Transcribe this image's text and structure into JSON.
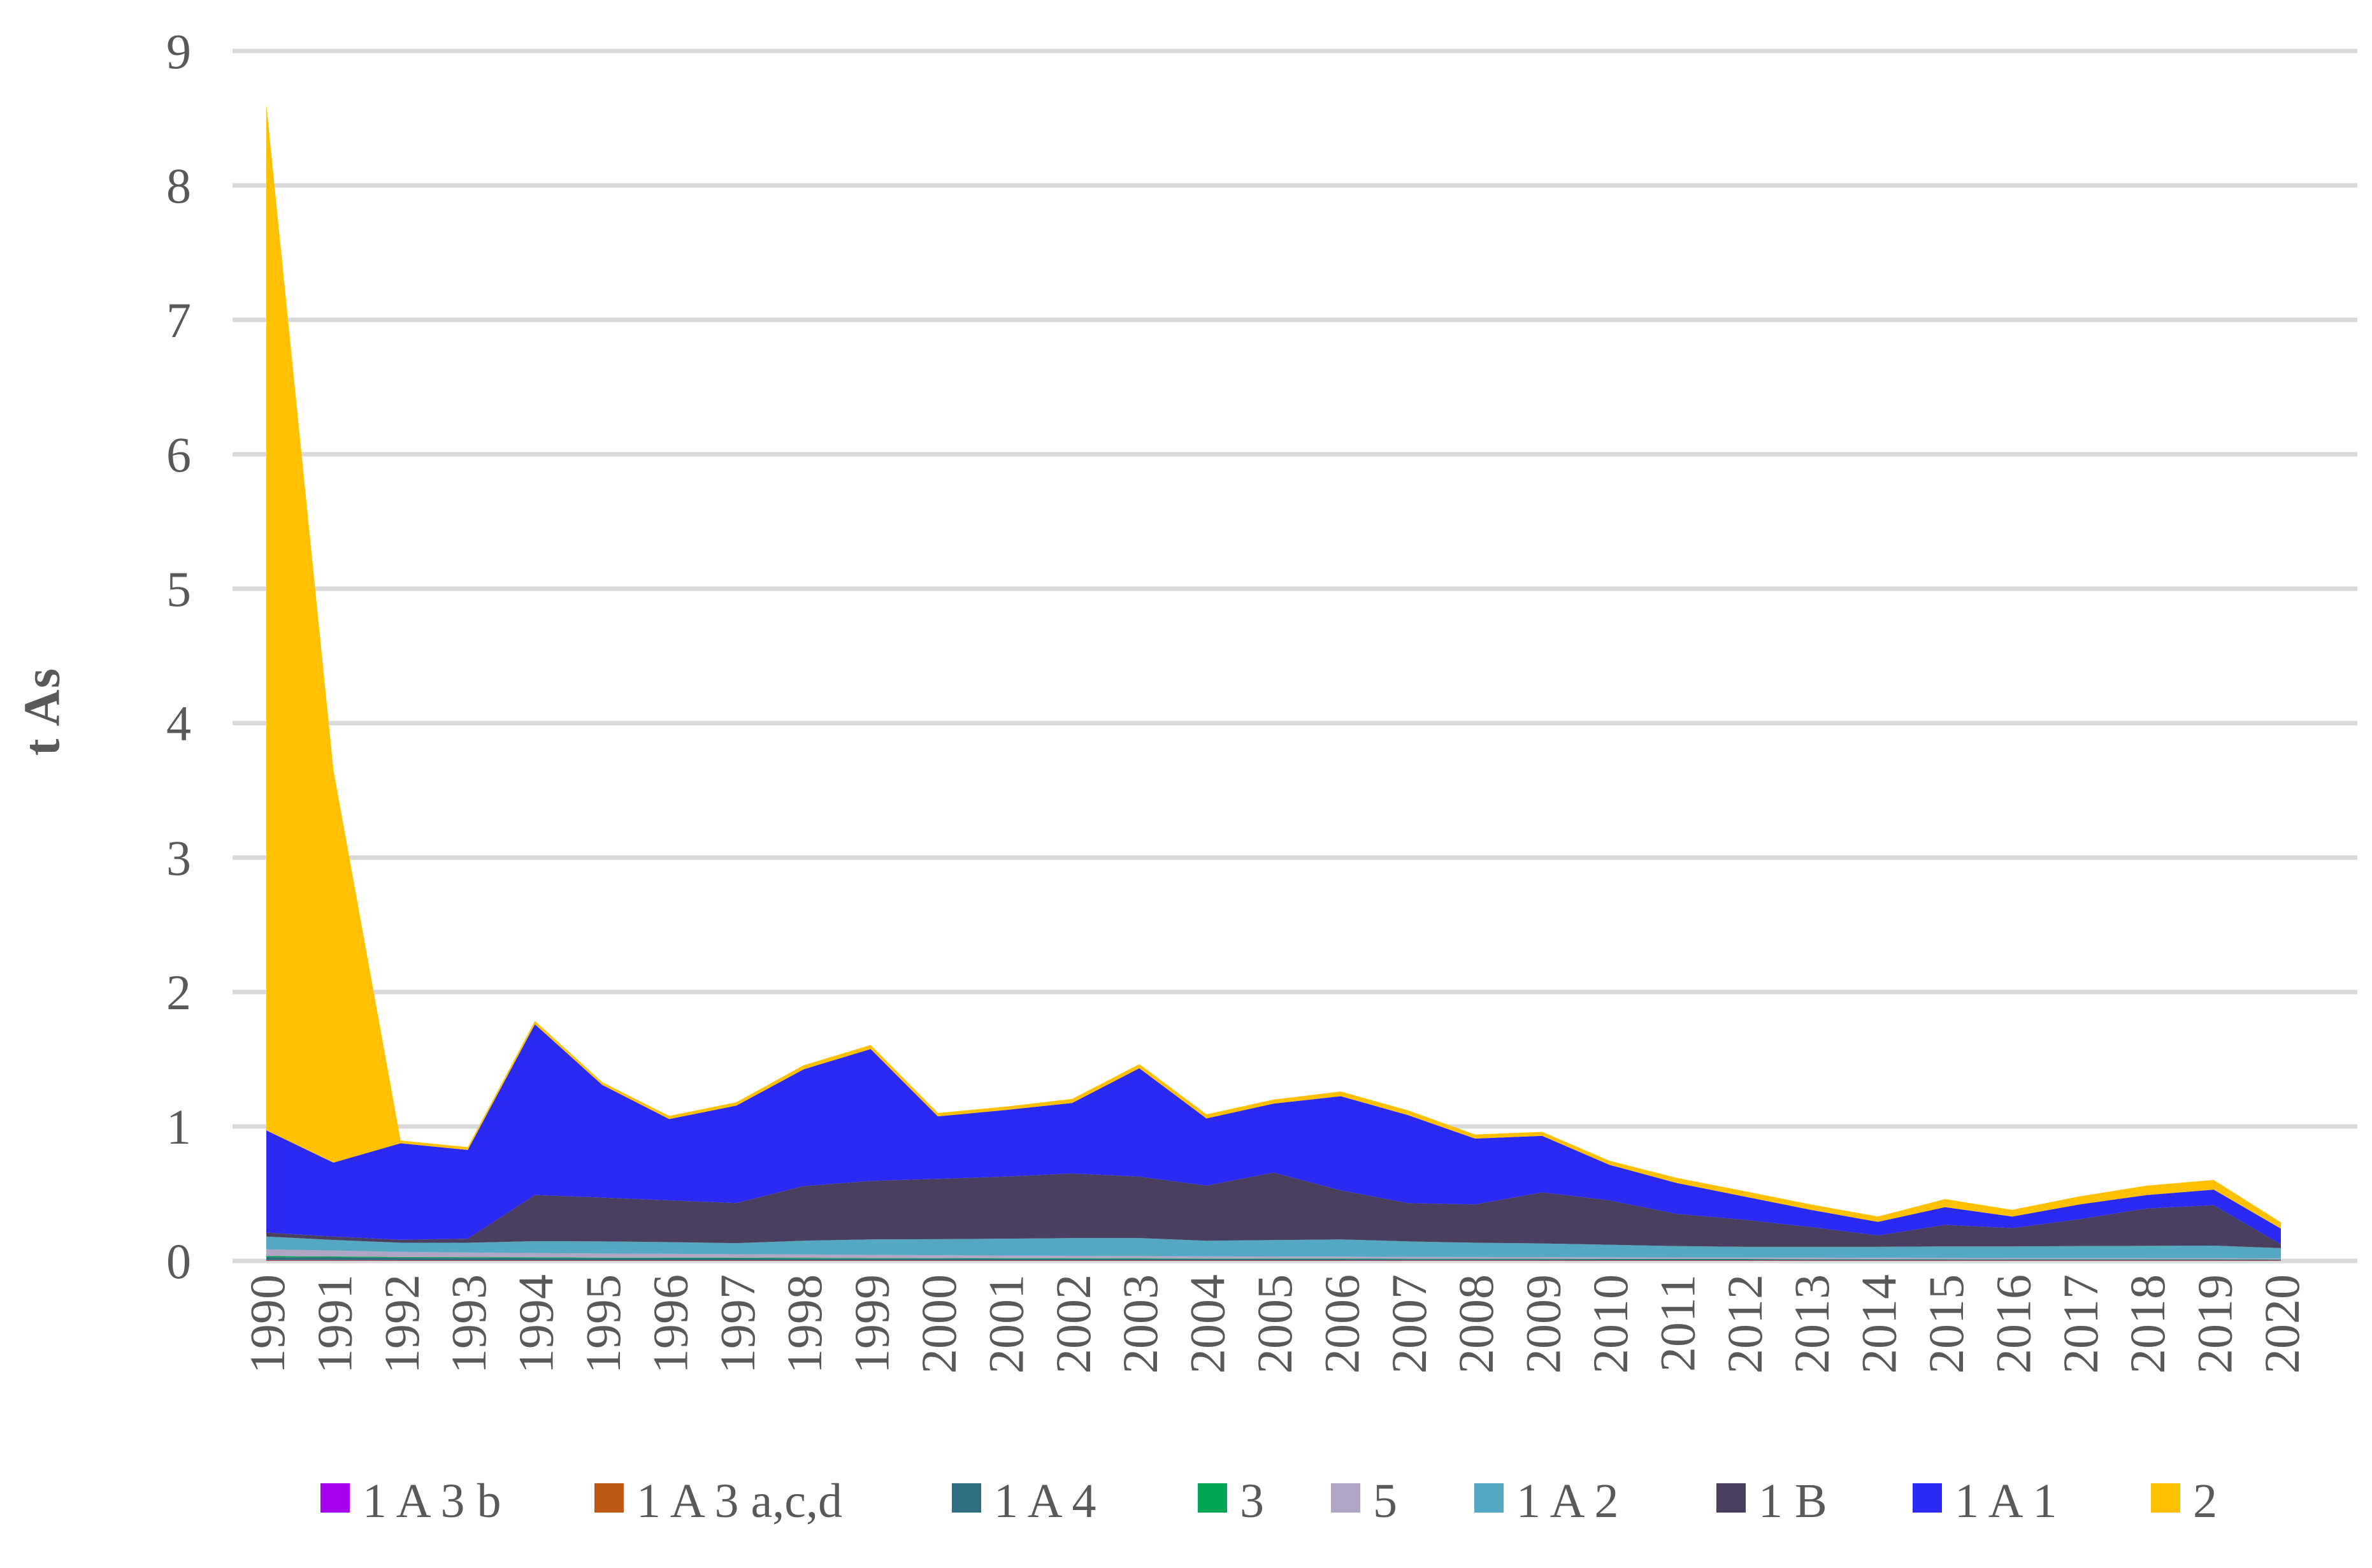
{
  "chart_data": {
    "type": "area",
    "stacked": true,
    "title": "",
    "xlabel": "",
    "ylabel": "t As",
    "ylim": [
      0,
      9
    ],
    "grid": "horizontal",
    "gridline_color": "#D9D9D9",
    "background_color": "#FFFFFF",
    "text_color": "#595959",
    "legend_position": "bottom",
    "y_ticks": [
      "0",
      "1",
      "2",
      "3",
      "4",
      "5",
      "6",
      "7",
      "8",
      "9"
    ],
    "x": [
      1990,
      1991,
      1992,
      1993,
      1994,
      1995,
      1996,
      1997,
      1998,
      1999,
      2000,
      2001,
      2002,
      2003,
      2004,
      2005,
      2006,
      2007,
      2008,
      2009,
      2010,
      2011,
      2012,
      2013,
      2014,
      2015,
      2016,
      2017,
      2018,
      2019,
      2020
    ],
    "x_tick_labels": [
      "1990",
      "1991",
      "1992",
      "1993",
      "1994",
      "1995",
      "1996",
      "1997",
      "1998",
      "1999",
      "2000",
      "2001",
      "2002",
      "2003",
      "2004",
      "2005",
      "2006",
      "2007",
      "2008",
      "2009",
      "2010",
      "2011",
      "2012",
      "2013",
      "2014",
      "2015",
      "2016",
      "2017",
      "2018",
      "2019",
      "2020"
    ],
    "series": [
      {
        "name": "1 A 3 b",
        "color": "#A800F0",
        "values": [
          0.002,
          0.002,
          0.002,
          0.002,
          0.002,
          0.002,
          0.002,
          0.002,
          0.002,
          0.002,
          0.002,
          0.002,
          0.002,
          0.002,
          0.002,
          0.002,
          0.002,
          0.002,
          0.002,
          0.002,
          0.002,
          0.002,
          0.002,
          0.002,
          0.002,
          0.002,
          0.002,
          0.002,
          0.002,
          0.002,
          0.002
        ]
      },
      {
        "name": "1 A 3 a,c,d",
        "color": "#BE5A15",
        "values": [
          0.004,
          0.004,
          0.003,
          0.003,
          0.003,
          0.003,
          0.003,
          0.003,
          0.003,
          0.003,
          0.003,
          0.003,
          0.003,
          0.003,
          0.003,
          0.003,
          0.003,
          0.003,
          0.003,
          0.003,
          0.003,
          0.003,
          0.003,
          0.003,
          0.003,
          0.003,
          0.003,
          0.003,
          0.003,
          0.003,
          0.003
        ]
      },
      {
        "name": "1 A 4",
        "color": "#2F6D80",
        "values": [
          0.022,
          0.02,
          0.018,
          0.017,
          0.016,
          0.015,
          0.014,
          0.014,
          0.013,
          0.012,
          0.012,
          0.011,
          0.011,
          0.01,
          0.01,
          0.009,
          0.009,
          0.008,
          0.008,
          0.008,
          0.007,
          0.007,
          0.007,
          0.006,
          0.006,
          0.006,
          0.005,
          0.005,
          0.005,
          0.005,
          0.004
        ]
      },
      {
        "name": "3",
        "color": "#00A651",
        "values": [
          0.008,
          0.007,
          0.006,
          0.006,
          0.006,
          0.005,
          0.005,
          0.005,
          0.005,
          0.004,
          0.004,
          0.004,
          0.004,
          0.004,
          0.003,
          0.003,
          0.003,
          0.003,
          0.003,
          0.003,
          0.003,
          0.003,
          0.002,
          0.002,
          0.002,
          0.002,
          0.002,
          0.002,
          0.002,
          0.002,
          0.002
        ]
      },
      {
        "name": "5",
        "color": "#B1A5C6",
        "values": [
          0.05,
          0.044,
          0.038,
          0.034,
          0.031,
          0.03,
          0.029,
          0.026,
          0.025,
          0.024,
          0.021,
          0.02,
          0.018,
          0.017,
          0.016,
          0.016,
          0.015,
          0.014,
          0.013,
          0.012,
          0.012,
          0.011,
          0.011,
          0.011,
          0.01,
          0.009,
          0.009,
          0.009,
          0.008,
          0.008,
          0.007
        ]
      },
      {
        "name": "1 A 2",
        "color": "#54A8C2",
        "values": [
          0.095,
          0.079,
          0.068,
          0.073,
          0.089,
          0.09,
          0.087,
          0.082,
          0.102,
          0.115,
          0.12,
          0.125,
          0.132,
          0.134,
          0.116,
          0.122,
          0.128,
          0.115,
          0.106,
          0.102,
          0.093,
          0.084,
          0.08,
          0.081,
          0.082,
          0.086,
          0.087,
          0.089,
          0.092,
          0.094,
          0.077
        ]
      },
      {
        "name": "1 B",
        "color": "#4A3F5F",
        "values": [
          0.03,
          0.025,
          0.022,
          0.03,
          0.343,
          0.326,
          0.31,
          0.298,
          0.406,
          0.435,
          0.448,
          0.462,
          0.48,
          0.457,
          0.41,
          0.502,
          0.365,
          0.285,
          0.285,
          0.38,
          0.33,
          0.24,
          0.201,
          0.147,
          0.084,
          0.16,
          0.136,
          0.2,
          0.278,
          0.3,
          0.028
        ]
      },
      {
        "name": "1 A 1",
        "color": "#2A2AF2",
        "values": [
          0.76,
          0.55,
          0.718,
          0.66,
          1.27,
          0.839,
          0.605,
          0.725,
          0.869,
          0.981,
          0.465,
          0.495,
          0.525,
          0.806,
          0.5,
          0.513,
          0.7,
          0.655,
          0.49,
          0.42,
          0.265,
          0.23,
          0.174,
          0.128,
          0.101,
          0.132,
          0.086,
          0.11,
          0.1,
          0.116,
          0.117
        ]
      },
      {
        "name": "2",
        "color": "#FFC000",
        "values": [
          7.63,
          2.92,
          0.021,
          0.021,
          0.025,
          0.02,
          0.023,
          0.025,
          0.03,
          0.03,
          0.025,
          0.025,
          0.03,
          0.03,
          0.03,
          0.03,
          0.035,
          0.035,
          0.03,
          0.03,
          0.03,
          0.038,
          0.04,
          0.04,
          0.04,
          0.06,
          0.05,
          0.06,
          0.07,
          0.072,
          0.047
        ]
      }
    ]
  }
}
